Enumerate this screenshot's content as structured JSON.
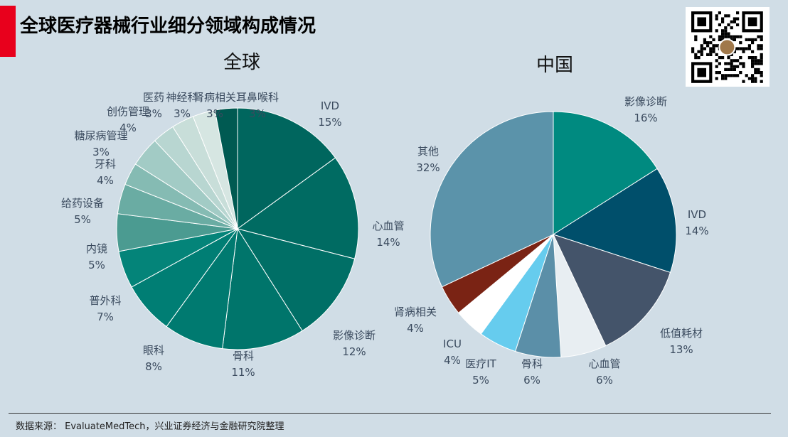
{
  "header": {
    "title": "全球医疗器械行业细分领域构成情况"
  },
  "footer": {
    "source": "数据来源： EvaluateMedTech，兴业证券经济与金融研究院整理"
  },
  "chart_data": [
    {
      "type": "pie",
      "title": "全球",
      "slices": [
        {
          "label": "IVD",
          "value": 15,
          "value_label": "15%",
          "color": "#00665e"
        },
        {
          "label": "心血管",
          "value": 14,
          "value_label": "14%",
          "color": "#006b62"
        },
        {
          "label": "影像诊断",
          "value": 12,
          "value_label": "12%",
          "color": "#006f66"
        },
        {
          "label": "骨科",
          "value": 11,
          "value_label": "11%",
          "color": "#00756b"
        },
        {
          "label": "眼科",
          "value": 8,
          "value_label": "8%",
          "color": "#007a70"
        },
        {
          "label": "普外科",
          "value": 7,
          "value_label": "7%",
          "color": "#007e74"
        },
        {
          "label": "内镜",
          "value": 5,
          "value_label": "5%",
          "color": "#048479"
        },
        {
          "label": "给药设备",
          "value": 5,
          "value_label": "5%",
          "color": "#4b9b91"
        },
        {
          "label": "牙科",
          "value": 4,
          "value_label": "4%",
          "color": "#6aaca3"
        },
        {
          "label": "糖尿病管理",
          "value": 3,
          "value_label": "3%",
          "color": "#85bbb3"
        },
        {
          "label": "创伤管理",
          "value": 4,
          "value_label": "4%",
          "color": "#a2cbc5"
        },
        {
          "label": "医药",
          "value": 3,
          "value_label": "3%",
          "color": "#b8d6d1"
        },
        {
          "label": "神经科",
          "value": 3,
          "value_label": "3%",
          "color": "#c8ded9"
        },
        {
          "label": "肾病相关",
          "value": 3,
          "value_label": "3%",
          "color": "#d6e6e2"
        },
        {
          "label": "耳鼻喉科",
          "value": 3,
          "value_label": "3%",
          "color": "#005a52"
        }
      ]
    },
    {
      "type": "pie",
      "title": "中国",
      "slices": [
        {
          "label": "影像诊断",
          "value": 16,
          "value_label": "16%",
          "color": "#008a80"
        },
        {
          "label": "IVD",
          "value": 14,
          "value_label": "14%",
          "color": "#004f6b"
        },
        {
          "label": "低值耗材",
          "value": 13,
          "value_label": "13%",
          "color": "#44546a"
        },
        {
          "label": "心血管",
          "value": 6,
          "value_label": "6%",
          "color": "#e8eef2"
        },
        {
          "label": "骨科",
          "value": 6,
          "value_label": "6%",
          "color": "#5b8fa8"
        },
        {
          "label": "医疗IT",
          "value": 5,
          "value_label": "5%",
          "color": "#66ccee"
        },
        {
          "label": "ICU",
          "value": 4,
          "value_label": "4%",
          "color": "#ffffff"
        },
        {
          "label": "肾病相关",
          "value": 4,
          "value_label": "4%",
          "color": "#7a2314"
        },
        {
          "label": "其他",
          "value": 32,
          "value_label": "32%",
          "color": "#5b93aa"
        }
      ]
    }
  ]
}
